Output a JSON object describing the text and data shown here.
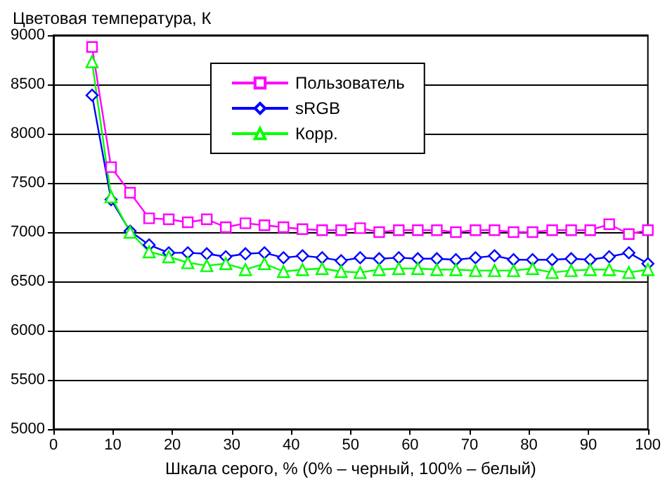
{
  "chart_data": {
    "type": "line",
    "ylabel": "Цветовая температура, К",
    "xlabel": "Шкала серого, % (0% – черный, 100% – белый)",
    "x": [
      6.5,
      9.7,
      12.9,
      16.1,
      19.4,
      22.6,
      25.8,
      29,
      32.3,
      35.5,
      38.7,
      41.9,
      45.2,
      48.4,
      51.6,
      54.8,
      58.1,
      61.3,
      64.5,
      67.7,
      71,
      74.2,
      77.4,
      80.6,
      83.9,
      87.1,
      90.3,
      93.5,
      96.8,
      100
    ],
    "series": [
      {
        "name": "Пользователь",
        "color": "#ff00ff",
        "marker": "square",
        "values": [
          8880,
          7660,
          7400,
          7140,
          7130,
          7100,
          7130,
          7050,
          7090,
          7070,
          7050,
          7030,
          7020,
          7020,
          7040,
          7000,
          7020,
          7020,
          7020,
          7000,
          7020,
          7020,
          7000,
          7000,
          7020,
          7020,
          7020,
          7080,
          6980,
          7020
        ]
      },
      {
        "name": "sRGB",
        "color": "#0000ff",
        "marker": "diamond",
        "values": [
          8390,
          7330,
          7010,
          6870,
          6790,
          6790,
          6780,
          6750,
          6780,
          6790,
          6740,
          6760,
          6740,
          6710,
          6740,
          6730,
          6740,
          6730,
          6730,
          6720,
          6740,
          6760,
          6720,
          6720,
          6720,
          6730,
          6720,
          6750,
          6790,
          6680
        ]
      },
      {
        "name": "Корр.",
        "color": "#00ff00",
        "marker": "triangle",
        "values": [
          8730,
          7360,
          7000,
          6800,
          6750,
          6690,
          6660,
          6680,
          6620,
          6680,
          6600,
          6620,
          6630,
          6600,
          6590,
          6620,
          6630,
          6630,
          6620,
          6620,
          6610,
          6610,
          6610,
          6630,
          6590,
          6610,
          6620,
          6620,
          6590,
          6620
        ]
      }
    ],
    "xlim": [
      0,
      100
    ],
    "xticks": [
      0,
      10,
      20,
      30,
      40,
      50,
      60,
      70,
      80,
      90,
      100
    ],
    "ylim": [
      5000,
      9000
    ],
    "yticks": [
      5000,
      5500,
      6000,
      6500,
      7000,
      7500,
      8000,
      8500,
      9000
    ],
    "grid": "y",
    "legend": "top"
  }
}
